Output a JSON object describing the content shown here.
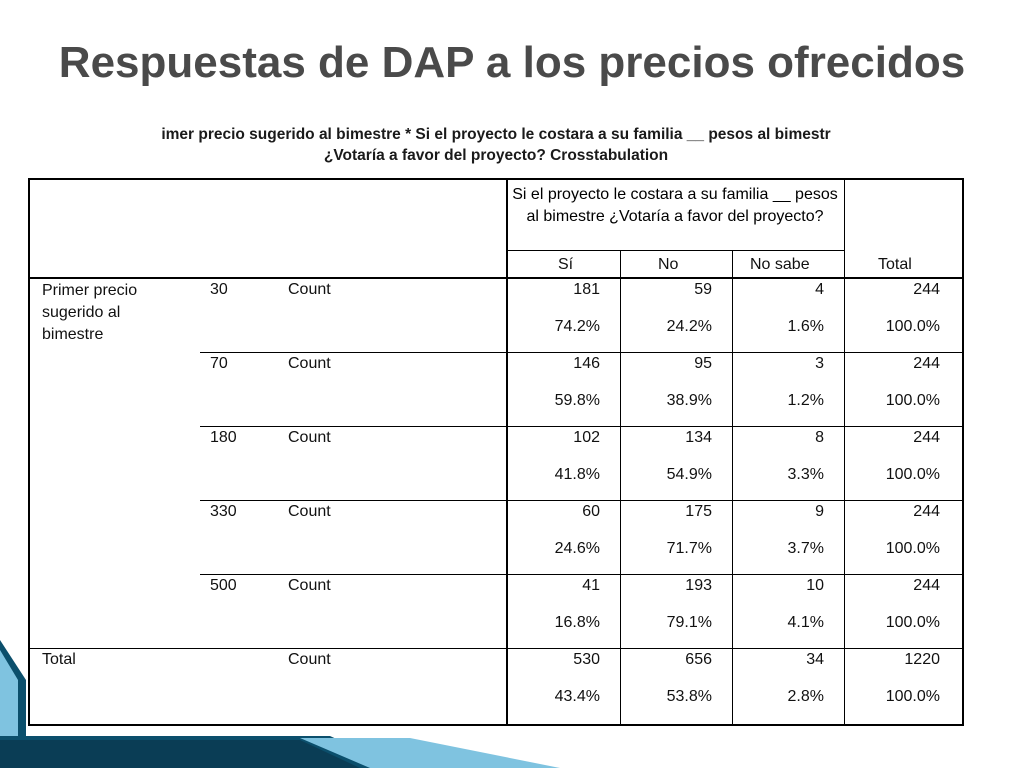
{
  "title": "Respuestas de DAP a los precios ofrecidos",
  "crosstab_title_line1": "imer precio sugerido al bimestre * Si el proyecto le costara a su familia __ pesos al bimestr",
  "crosstab_title_line2": "¿Votaría a favor del proyecto? Crosstabulation",
  "header": {
    "question": "Si el proyecto le costara a su familia __ pesos al bimestre ¿Votaría a favor del proyecto?",
    "columns": [
      "Sí",
      "No",
      "No sabe"
    ],
    "total": "Total"
  },
  "row_variable": "Primer precio sugerido al bimestre",
  "rows": [
    {
      "price": "30",
      "stat": "Count",
      "counts": [
        "181",
        "59",
        "4",
        "244"
      ],
      "pcts": [
        "74.2%",
        "24.2%",
        "1.6%",
        "100.0%"
      ]
    },
    {
      "price": "70",
      "stat": "Count",
      "counts": [
        "146",
        "95",
        "3",
        "244"
      ],
      "pcts": [
        "59.8%",
        "38.9%",
        "1.2%",
        "100.0%"
      ]
    },
    {
      "price": "180",
      "stat": "Count",
      "counts": [
        "102",
        "134",
        "8",
        "244"
      ],
      "pcts": [
        "41.8%",
        "54.9%",
        "3.3%",
        "100.0%"
      ]
    },
    {
      "price": "330",
      "stat": "Count",
      "counts": [
        "60",
        "175",
        "9",
        "244"
      ],
      "pcts": [
        "24.6%",
        "71.7%",
        "3.7%",
        "100.0%"
      ]
    },
    {
      "price": "500",
      "stat": "Count",
      "counts": [
        "41",
        "193",
        "10",
        "244"
      ],
      "pcts": [
        "16.8%",
        "79.1%",
        "4.1%",
        "100.0%"
      ]
    }
  ],
  "total_row": {
    "label": "Total",
    "stat": "Count",
    "counts": [
      "530",
      "656",
      "34",
      "1220"
    ],
    "pcts": [
      "43.4%",
      "53.8%",
      "2.8%",
      "100.0%"
    ]
  },
  "colors": {
    "title": "#4a4a4a",
    "accent_dark": "#0b4f6c",
    "accent_light": "#7fc3e0"
  }
}
